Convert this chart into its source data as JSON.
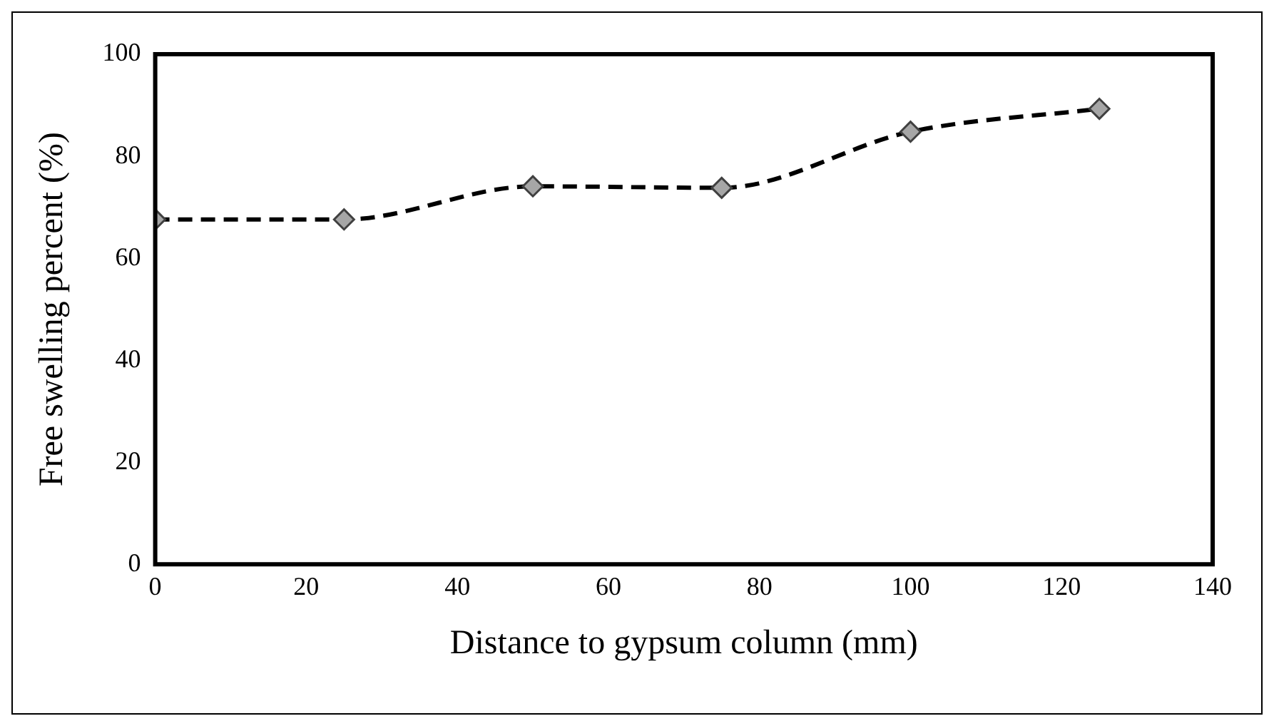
{
  "chart_data": {
    "type": "line",
    "xlabel": "Distance to gypsum column (mm)",
    "ylabel": "Free swelling percent (%)",
    "x": [
      0,
      25,
      50,
      75,
      100,
      125
    ],
    "series": [
      {
        "color": "#000000",
        "values": [
          67.6,
          67.6,
          74.1,
          73.8,
          84.8,
          89.3
        ]
      }
    ],
    "xlim": [
      0,
      140
    ],
    "xticks": [
      0,
      20,
      40,
      60,
      80,
      100,
      120,
      140
    ],
    "ylim": [
      0,
      100
    ],
    "yticks": [
      0,
      20,
      40,
      60,
      80,
      100
    ],
    "grid": false,
    "legend": false,
    "marker": "diamond",
    "line_style": "dashed"
  }
}
